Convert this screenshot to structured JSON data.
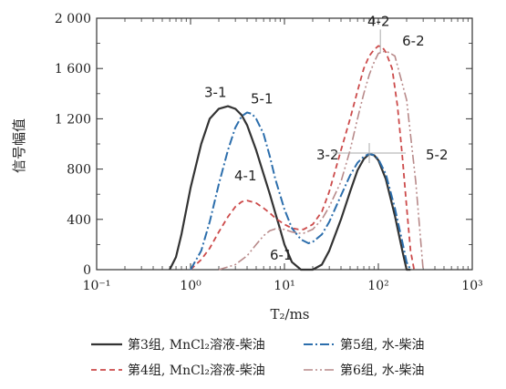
{
  "chart_data": {
    "type": "line",
    "xlabel": "T₂/ms",
    "ylabel": "信号幅值",
    "x_scale": "log",
    "xlim": [
      0.1,
      1000
    ],
    "ylim": [
      0,
      2000
    ],
    "x_ticks": [
      "10⁻¹",
      "10⁰",
      "10¹",
      "10²",
      "10³"
    ],
    "y_ticks": [
      "0",
      "400",
      "800",
      "1 200",
      "1 600",
      "2 000"
    ],
    "series": [
      {
        "name": "第3组, MnCl₂溶液-柴油",
        "color": "#333333",
        "dash": "solid",
        "x": [
          0.6,
          0.7,
          0.8,
          1.0,
          1.3,
          1.6,
          2.0,
          2.5,
          3.0,
          3.5,
          4.0,
          5.0,
          6.0,
          7.0,
          8.0,
          9.0,
          10,
          12,
          15,
          18,
          20,
          25,
          30,
          40,
          50,
          60,
          70,
          80,
          90,
          100,
          120,
          150,
          180,
          200,
          220
        ],
        "y": [
          0,
          100,
          280,
          650,
          1000,
          1200,
          1280,
          1300,
          1280,
          1230,
          1150,
          950,
          760,
          600,
          450,
          320,
          200,
          60,
          0,
          0,
          0,
          40,
          150,
          400,
          620,
          790,
          880,
          920,
          910,
          870,
          720,
          430,
          150,
          0,
          0
        ]
      },
      {
        "name": "第4组, MnCl₂溶液-柴油",
        "color": "#cc4a4a",
        "dash": "6 4",
        "x": [
          1.0,
          1.3,
          1.6,
          2.0,
          2.5,
          3.0,
          3.5,
          4.0,
          5.0,
          6.0,
          7.0,
          8.0,
          10,
          12,
          14,
          16,
          20,
          25,
          30,
          40,
          50,
          60,
          70,
          80,
          90,
          100,
          110,
          120,
          140,
          160,
          180,
          200,
          220,
          240
        ],
        "y": [
          0,
          80,
          170,
          300,
          420,
          500,
          540,
          550,
          530,
          490,
          450,
          410,
          360,
          330,
          320,
          320,
          360,
          460,
          620,
          950,
          1200,
          1420,
          1600,
          1700,
          1750,
          1780,
          1770,
          1730,
          1600,
          1300,
          900,
          500,
          150,
          0
        ]
      },
      {
        "name": "第5组, 水-柴油",
        "color": "#2c6eac",
        "dash": "10 3 2 3",
        "x": [
          1.0,
          1.3,
          1.6,
          2.0,
          2.5,
          3.0,
          3.5,
          4.0,
          4.5,
          5.0,
          6.0,
          7.0,
          8.0,
          10,
          12,
          15,
          18,
          20,
          25,
          30,
          40,
          50,
          60,
          70,
          80,
          90,
          100,
          120,
          150,
          180,
          200,
          220
        ],
        "y": [
          0,
          150,
          380,
          680,
          950,
          1130,
          1220,
          1250,
          1240,
          1200,
          1080,
          900,
          720,
          480,
          330,
          240,
          210,
          220,
          280,
          380,
          590,
          750,
          850,
          900,
          920,
          910,
          880,
          760,
          490,
          220,
          60,
          0
        ]
      },
      {
        "name": "第6组, 水-柴油",
        "color": "#b88a8a",
        "dash": "10 3 2 3 2 3",
        "x": [
          2.0,
          3.0,
          4.0,
          5.0,
          6.0,
          7.0,
          8.0,
          10,
          12,
          14,
          16,
          20,
          25,
          30,
          40,
          50,
          60,
          70,
          80,
          90,
          100,
          120,
          150,
          200,
          250,
          300
        ],
        "y": [
          0,
          40,
          110,
          200,
          270,
          310,
          325,
          320,
          300,
          290,
          290,
          320,
          400,
          500,
          700,
          950,
          1200,
          1400,
          1550,
          1650,
          1720,
          1740,
          1700,
          1350,
          700,
          0
        ]
      }
    ],
    "annotations": [
      {
        "text": "3-1",
        "x": 2.5,
        "y": 1300
      },
      {
        "text": "5-1",
        "x": 4.0,
        "y": 1250
      },
      {
        "text": "4-1",
        "x": 4.0,
        "y": 550
      },
      {
        "text": "6-1",
        "x": 8.0,
        "y": 325
      },
      {
        "text": "3-2",
        "x": 80,
        "y": 920
      },
      {
        "text": "5-2",
        "x": 80,
        "y": 920
      },
      {
        "text": "4-2",
        "x": 100,
        "y": 1780
      },
      {
        "text": "6-2",
        "x": 120,
        "y": 1740
      }
    ],
    "legend_position": "bottom"
  }
}
